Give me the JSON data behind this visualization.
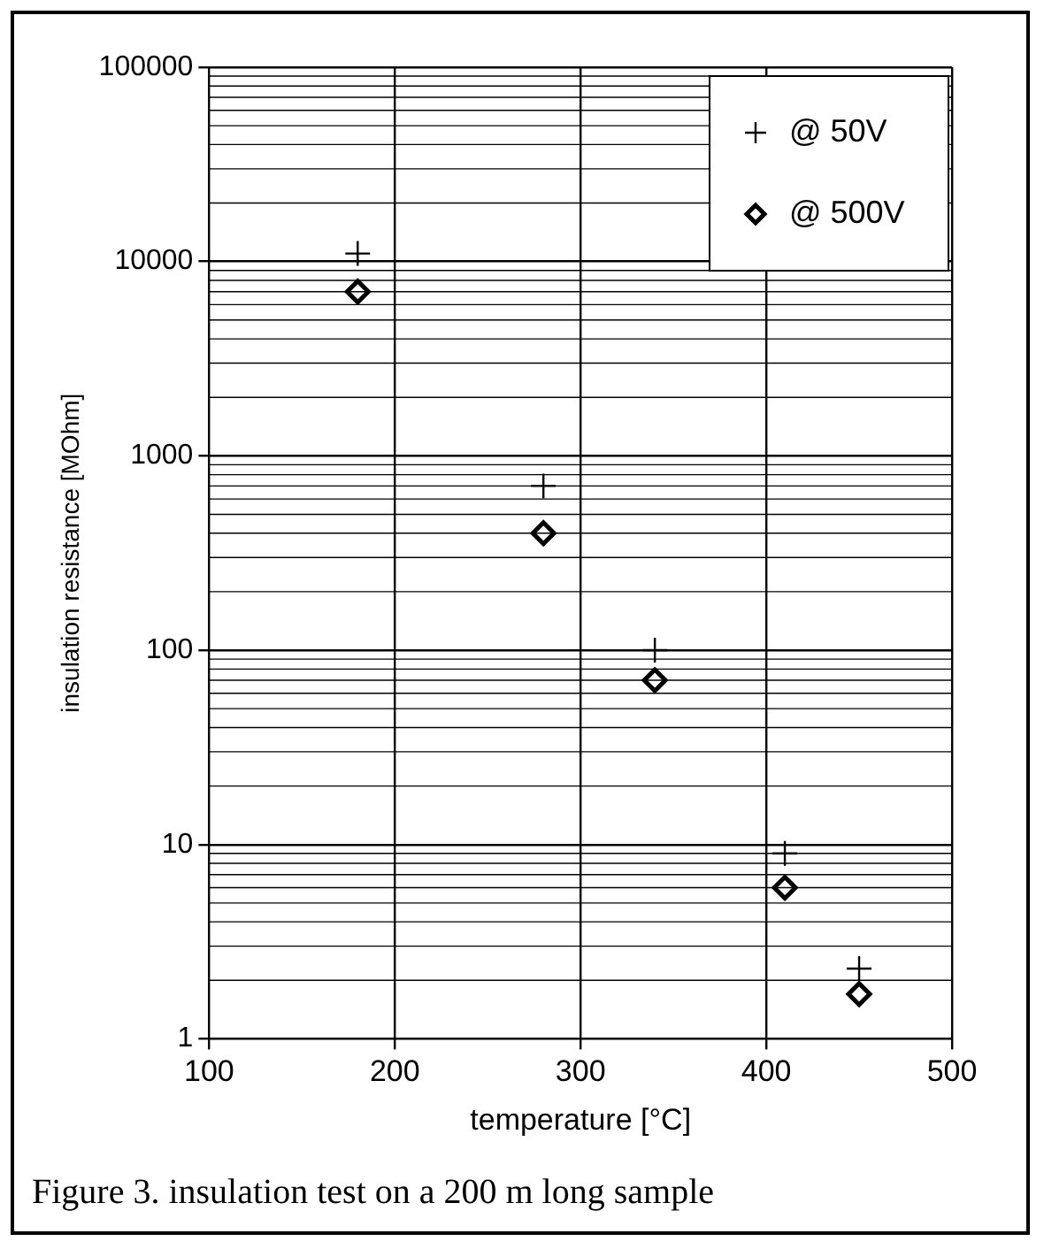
{
  "chart_data": {
    "type": "scatter",
    "xlabel": "temperature [°C]",
    "ylabel": "insulation resistance [MOhm]",
    "annotations": [
      "Figure 3. insulation test on a 200 m long sample"
    ],
    "x": [
      180,
      280,
      340,
      410,
      450
    ],
    "series": [
      {
        "name": "@ 50V",
        "color": "#000000",
        "marker": "cross",
        "values": [
          11000,
          700,
          100,
          9,
          2.3
        ]
      },
      {
        "name": "@ 500V",
        "color": "#000000",
        "marker": "diamond",
        "values": [
          7000,
          400,
          70,
          6,
          1.7
        ]
      }
    ],
    "xlim": [
      100,
      500
    ],
    "xticks": [
      100,
      200,
      300,
      400,
      500
    ],
    "ylim": [
      1,
      100000
    ],
    "yticks": [
      1,
      10,
      100,
      1000,
      10000,
      100000
    ],
    "log": "y",
    "grid": true,
    "legend": "top right"
  }
}
